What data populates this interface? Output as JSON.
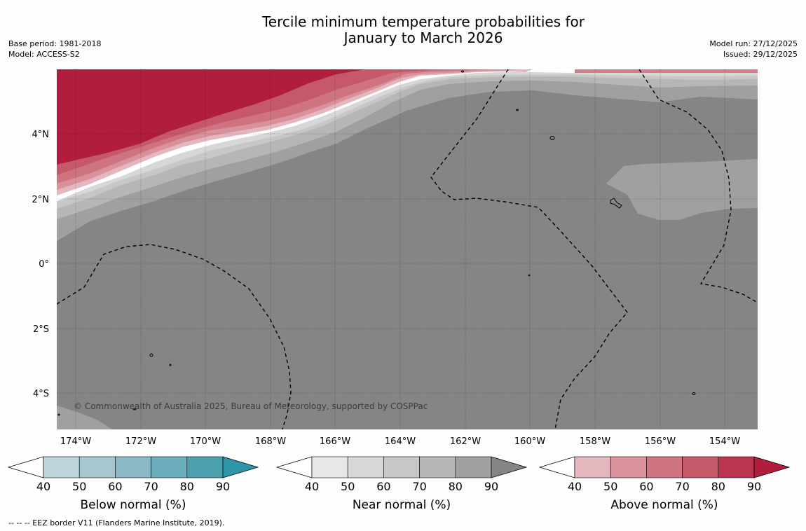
{
  "title": {
    "line1": "Tercile minimum temperature probabilities for",
    "line2": "January to March 2026"
  },
  "meta": {
    "base_period": "Base period: 1981-2018",
    "model": "Model: ACCESS-S2",
    "model_run": "Model run: 27/12/2025",
    "issued": "Issued: 29/12/2025"
  },
  "map": {
    "lat_labels": [
      "4°N",
      "2°N",
      "0°",
      "2°S",
      "4°S"
    ],
    "lon_labels": [
      "174°W",
      "172°W",
      "170°W",
      "168°W",
      "166°W",
      "164°W",
      "162°W",
      "160°W",
      "158°W",
      "156°W",
      "154°W"
    ],
    "copyright": "© Commonwealth of Australia 2025, Bureau of Meteorology, supported by COSPPac"
  },
  "colorbars": [
    {
      "label": "Below normal (%)",
      "ticks": [
        "40",
        "50",
        "60",
        "70",
        "80",
        "90"
      ],
      "colors": [
        "#ffffff",
        "#bdd4da",
        "#a6c8ce",
        "#8ab9c5",
        "#6caebc",
        "#4da0ae",
        "#2f95a8"
      ]
    },
    {
      "label": "Near normal (%)",
      "ticks": [
        "40",
        "50",
        "60",
        "70",
        "80",
        "90"
      ],
      "colors": [
        "#ffffff",
        "#e7e7e7",
        "#d7d7d7",
        "#c7c7c7",
        "#b6b6b6",
        "#a0a0a0",
        "#858585"
      ]
    },
    {
      "label": "Above normal (%)",
      "ticks": [
        "40",
        "50",
        "60",
        "70",
        "80",
        "90"
      ],
      "colors": [
        "#ffffff",
        "#e3b7bd",
        "#d9929b",
        "#ce7480",
        "#c5596a",
        "#bb3550",
        "#b11d3c"
      ]
    }
  ],
  "footnote": "--  --  -- EEZ border V11 (Flanders Marine Institute, 2019)."
}
